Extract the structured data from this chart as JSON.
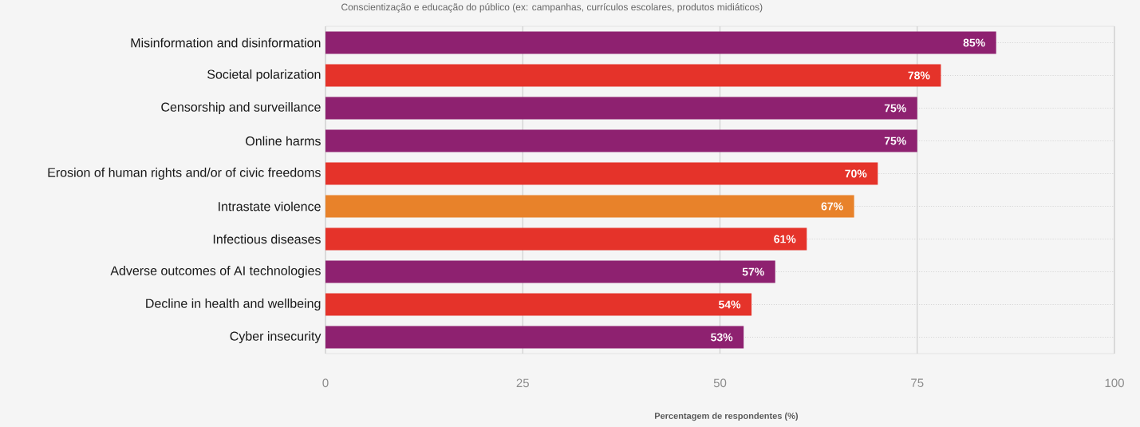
{
  "chart_data": {
    "type": "bar",
    "orientation": "horizontal",
    "title": "Conscientização e educação do público (ex: campanhas, currículos escolares, produtos midiáticos)",
    "xlabel": "Percentagem de respondentes (%)",
    "categories": [
      "Misinformation and disinformation",
      "Societal polarization",
      "Censorship and surveillance",
      "Online harms",
      "Erosion of human rights and/or of civic freedoms",
      "Intrastate violence",
      "Infectious diseases",
      "Adverse outcomes of AI technologies",
      "Decline in health and wellbeing",
      "Cyber insecurity"
    ],
    "values": [
      85,
      78,
      75,
      75,
      70,
      67,
      61,
      57,
      54,
      53
    ],
    "colors": [
      "#8e2170",
      "#e5332a",
      "#8e2170",
      "#8e2170",
      "#e5332a",
      "#e8822a",
      "#e5332a",
      "#8e2170",
      "#e5332a",
      "#8e2170"
    ],
    "value_labels": [
      "85%",
      "78%",
      "75%",
      "75%",
      "70%",
      "67%",
      "61%",
      "57%",
      "54%",
      "53%"
    ],
    "xlim": [
      0,
      100
    ],
    "xticks": [
      0,
      25,
      50,
      75,
      100
    ],
    "grid": true
  }
}
